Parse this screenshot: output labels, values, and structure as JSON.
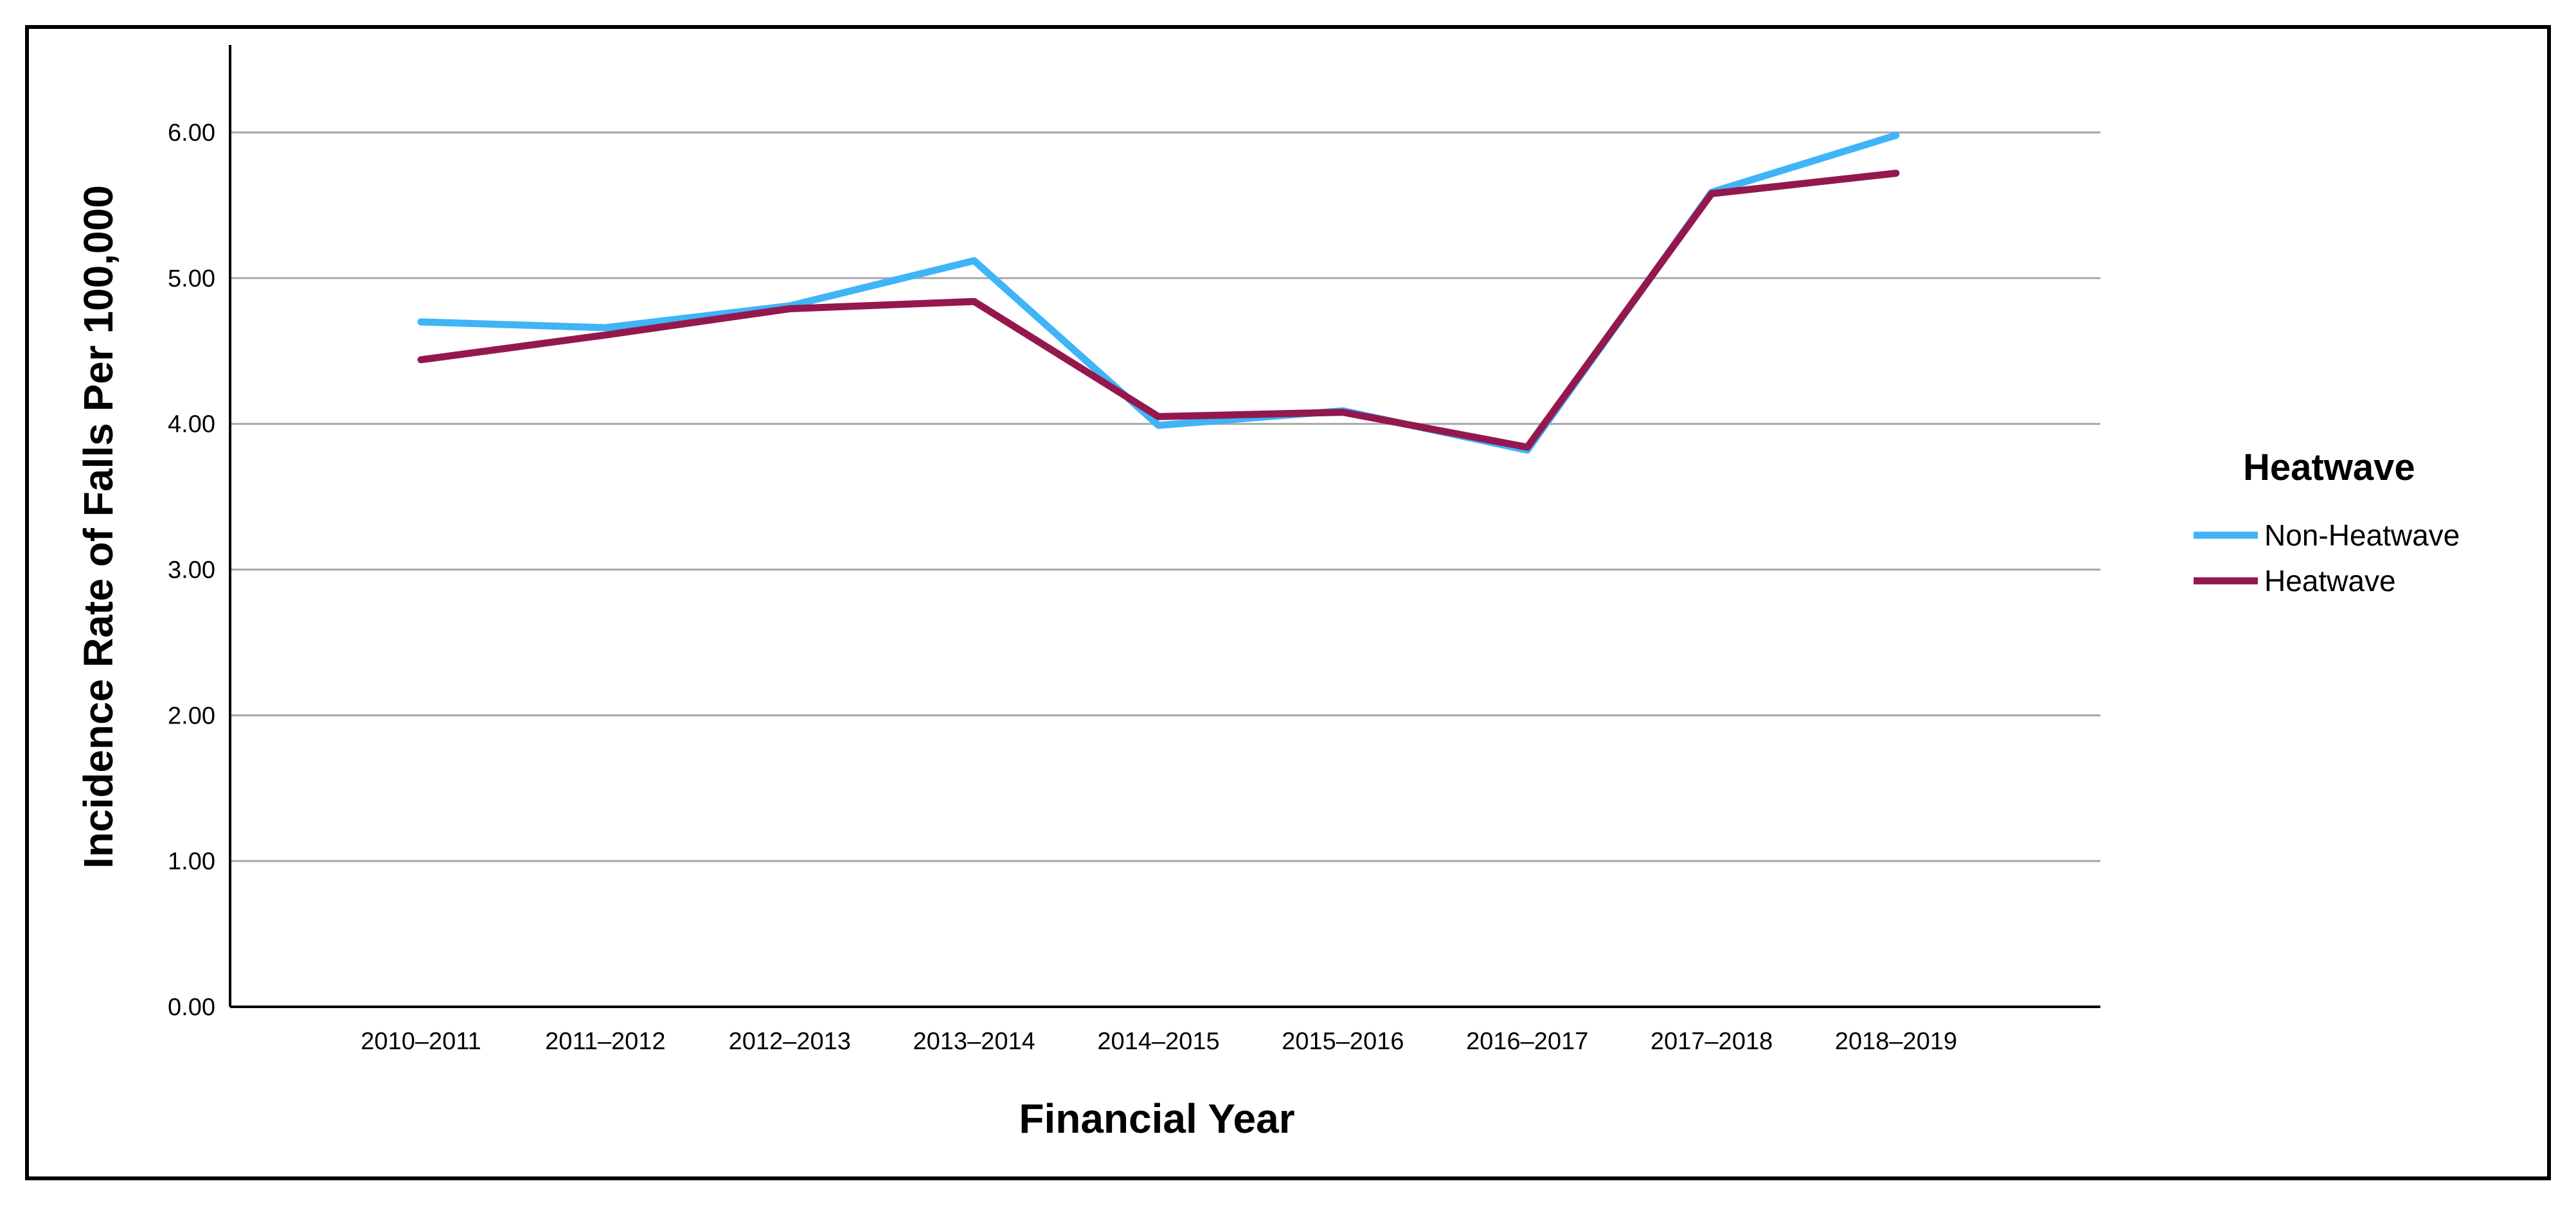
{
  "chart_data": {
    "type": "line",
    "title": "",
    "xlabel": "Financial Year",
    "ylabel": "Incidence Rate of Falls Per 100,000",
    "categories": [
      "2010–2011",
      "2011–2012",
      "2012–2013",
      "2013–2014",
      "2014–2015",
      "2015–2016",
      "2016–2017",
      "2017–2018",
      "2018–2019"
    ],
    "yticks": [
      "0.00",
      "1.00",
      "2.00",
      "3.00",
      "4.00",
      "5.00",
      "6.00"
    ],
    "ylim": [
      0,
      6.6
    ],
    "grid": true,
    "legend": {
      "title": "Heatwave",
      "placement": "right"
    },
    "series": [
      {
        "name": "Non-Heatwave",
        "color": "#3fb4f7",
        "values": [
          4.7,
          4.66,
          4.81,
          5.12,
          3.99,
          4.09,
          3.82,
          5.59,
          5.98
        ]
      },
      {
        "name": "Heatwave",
        "color": "#94184e",
        "values": [
          4.44,
          4.61,
          4.79,
          4.84,
          4.05,
          4.08,
          3.84,
          5.58,
          5.72
        ]
      }
    ]
  }
}
